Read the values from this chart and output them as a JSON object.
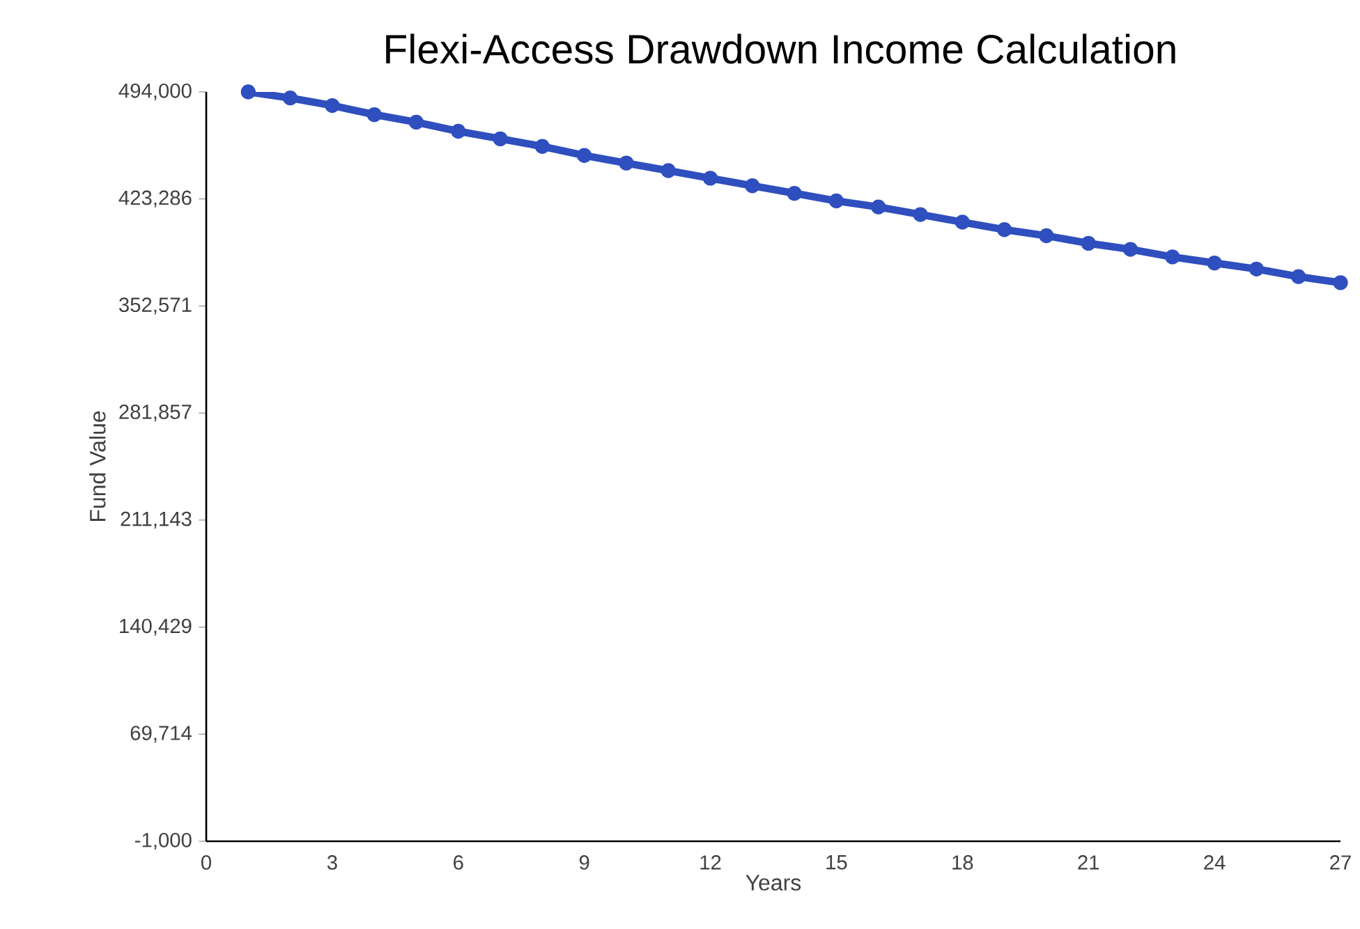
{
  "chart_data": {
    "type": "line",
    "title": "Flexi-Access Drawdown Income Calculation",
    "xlabel": "Years",
    "ylabel": "Fund Value",
    "x": [
      1,
      2,
      3,
      4,
      5,
      6,
      7,
      8,
      9,
      10,
      11,
      12,
      13,
      14,
      15,
      16,
      17,
      18,
      19,
      20,
      21,
      22,
      23,
      24,
      25,
      26,
      27
    ],
    "series": [
      {
        "color": "#2f4fbf",
        "values": [
          494000,
          490000,
          485000,
          479000,
          474000,
          468000,
          463000,
          458000,
          452000,
          447000,
          442000,
          437000,
          432000,
          427000,
          422000,
          418000,
          413000,
          408000,
          403000,
          399000,
          394000,
          390000,
          385000,
          381000,
          377000,
          372000,
          368000
        ]
      }
    ],
    "xlim": [
      0,
      27
    ],
    "ylim": [
      -1000,
      494000
    ],
    "xticks": [
      0,
      3,
      6,
      9,
      12,
      15,
      18,
      21,
      24,
      27
    ],
    "yticks": [
      {
        "value": -1000,
        "label": "-1,000"
      },
      {
        "value": 69714,
        "label": "69,714"
      },
      {
        "value": 140429,
        "label": "140,429"
      },
      {
        "value": 211143,
        "label": "211,143"
      },
      {
        "value": 281857,
        "label": "281,857"
      },
      {
        "value": 352571,
        "label": "352,571"
      },
      {
        "value": 423286,
        "label": "423,286"
      },
      {
        "value": 494000,
        "label": "494,000"
      }
    ],
    "grid": false,
    "marker": "circle",
    "line_style": "solid"
  }
}
